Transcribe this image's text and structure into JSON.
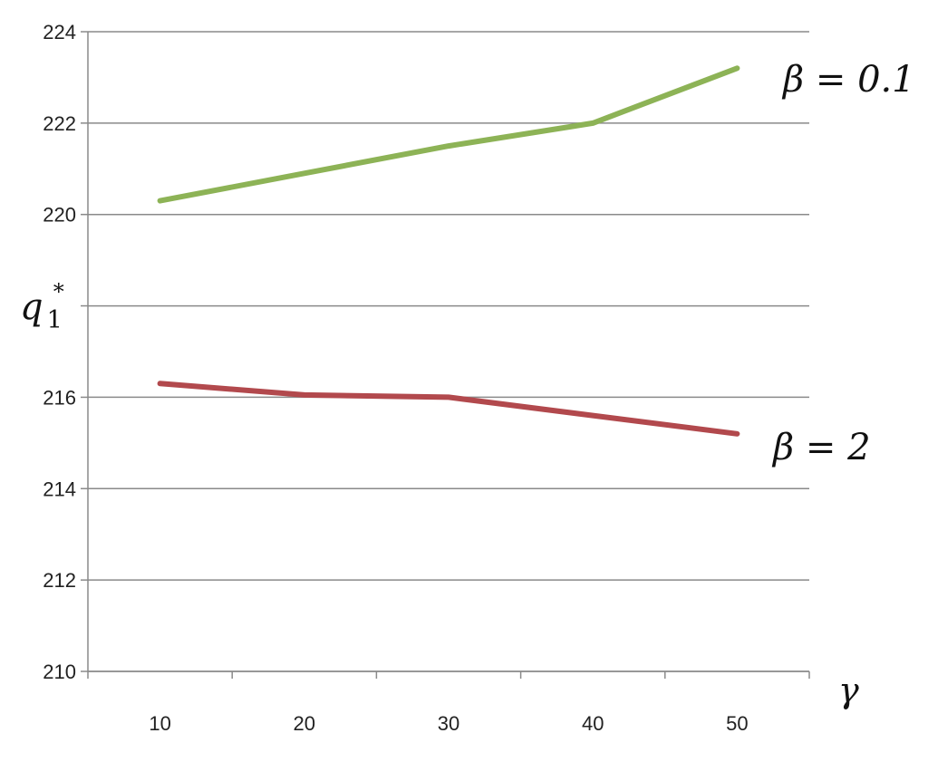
{
  "chart_data": {
    "type": "line",
    "title": "",
    "x": [
      10,
      20,
      30,
      40,
      50
    ],
    "xlim": [
      5,
      55
    ],
    "ylim": [
      210,
      224
    ],
    "y_ticks": [
      210,
      212,
      214,
      216,
      218,
      220,
      222,
      224
    ],
    "y_tick_labels": [
      "210",
      "212",
      "214",
      "216",
      "",
      "220",
      "222",
      "224"
    ],
    "x_tick_labels": [
      "10",
      "20",
      "30",
      "40",
      "50"
    ],
    "ylabel": {
      "base": "q",
      "sub": "1",
      "sup": "*"
    },
    "xlabel": "γ",
    "grid": "horizontal",
    "series": [
      {
        "name": "β = 0.1",
        "color": "#8db356",
        "values": [
          220.3,
          220.9,
          221.5,
          222.0,
          223.2
        ]
      },
      {
        "name": "β = 2",
        "color": "#b2494d",
        "values": [
          216.3,
          216.05,
          216.0,
          215.6,
          215.2
        ]
      }
    ]
  }
}
